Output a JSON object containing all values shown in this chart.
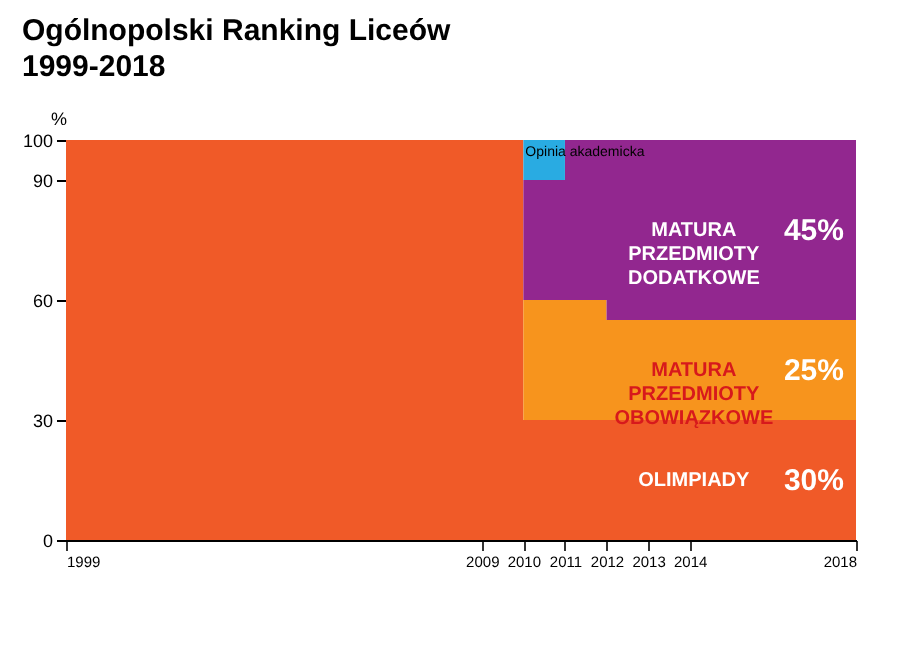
{
  "chart_data": {
    "type": "area",
    "title": "Ogólnopolski Ranking Liceów",
    "subtitle": "1999-2018",
    "ylabel": "%",
    "stacked": true,
    "x": [
      1999,
      2009,
      2010,
      2011,
      2012,
      2013,
      2014,
      2018
    ],
    "series": [
      {
        "name": "OLIMPIADY",
        "color": "#f05a28",
        "values": [
          100,
          100,
          30,
          30,
          30,
          30,
          30,
          30
        ],
        "value_labels": [
          null,
          null,
          null,
          null,
          null,
          null,
          null,
          "30%"
        ]
      },
      {
        "name": "MATURA PRZEDMIOTY OBOWIĄZKOWE",
        "color": "#f7941d",
        "values": [
          0,
          0,
          30,
          30,
          25,
          25,
          25,
          25
        ],
        "value_labels": [
          null,
          null,
          null,
          null,
          null,
          null,
          null,
          "25%"
        ]
      },
      {
        "name": "MATURA PRZEDMIOTY DODATKOWE",
        "color": "#92278f",
        "values": [
          0,
          0,
          30,
          40,
          45,
          45,
          45,
          45
        ],
        "value_labels": [
          null,
          null,
          null,
          null,
          null,
          null,
          null,
          "45%"
        ]
      },
      {
        "name": "Opinia akademicka",
        "color": "#29abe2",
        "values": [
          0,
          0,
          10,
          0,
          0,
          0,
          0,
          0
        ]
      }
    ],
    "xlim": [
      1999,
      2018
    ],
    "xticks": [
      1999,
      2009,
      2010,
      2011,
      2012,
      2013,
      2014,
      2018
    ],
    "ylim": [
      0,
      100
    ],
    "yticks": [
      0,
      30,
      60,
      90,
      100
    ],
    "grid": false,
    "legend": false
  }
}
